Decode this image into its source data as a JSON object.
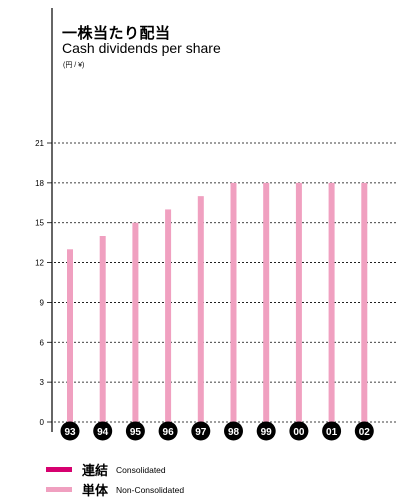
{
  "chart_data": {
    "type": "bar",
    "title_jp": "一株当たり配当",
    "title_en": "Cash dividends per share",
    "unit": "(円 / ¥)",
    "categories": [
      "93",
      "94",
      "95",
      "96",
      "97",
      "98",
      "99",
      "00",
      "01",
      "02"
    ],
    "series": [
      {
        "name": "単体",
        "values": [
          13,
          14,
          15,
          16,
          17,
          18,
          18,
          18,
          18,
          18
        ]
      }
    ],
    "yticks": [
      0,
      3,
      6,
      9,
      12,
      15,
      18,
      21
    ],
    "ylim": [
      0,
      21
    ],
    "grid": true,
    "legend": [
      {
        "jp": "連結",
        "en": "Consolidated",
        "color": "#d6006f"
      },
      {
        "jp": "単体",
        "en": "Non-Consolidated",
        "color": "#f0a0c0"
      }
    ]
  }
}
